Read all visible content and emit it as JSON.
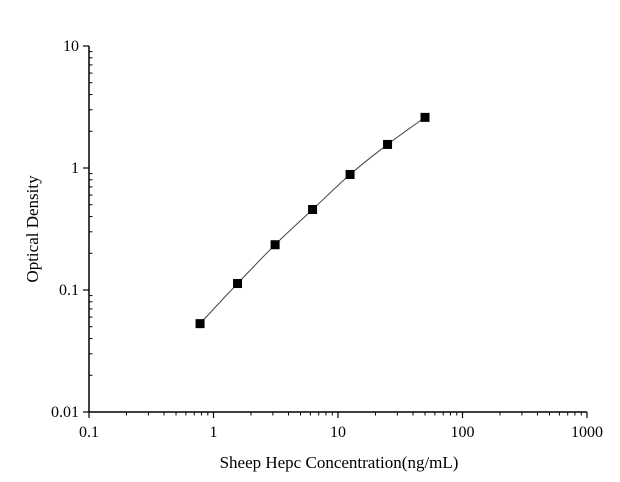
{
  "chart_data": {
    "type": "line",
    "title": "",
    "xlabel": "Sheep Hepc Concentration(ng/mL)",
    "ylabel": "Optical Density",
    "xscale": "log",
    "yscale": "log",
    "xlim": [
      0.1,
      1000
    ],
    "ylim": [
      0.01,
      10
    ],
    "xticks": [
      "0.1",
      "1",
      "10",
      "100",
      "1000"
    ],
    "yticks": [
      "0.01",
      "0.1",
      "1",
      "10"
    ],
    "grid": false,
    "marker": "square",
    "color": "#000000",
    "series": [
      {
        "x": [
          0.78,
          1.56,
          3.125,
          6.25,
          12.5,
          25,
          50
        ],
        "y": [
          0.053,
          0.113,
          0.235,
          0.457,
          0.885,
          1.56,
          2.6
        ]
      }
    ]
  }
}
